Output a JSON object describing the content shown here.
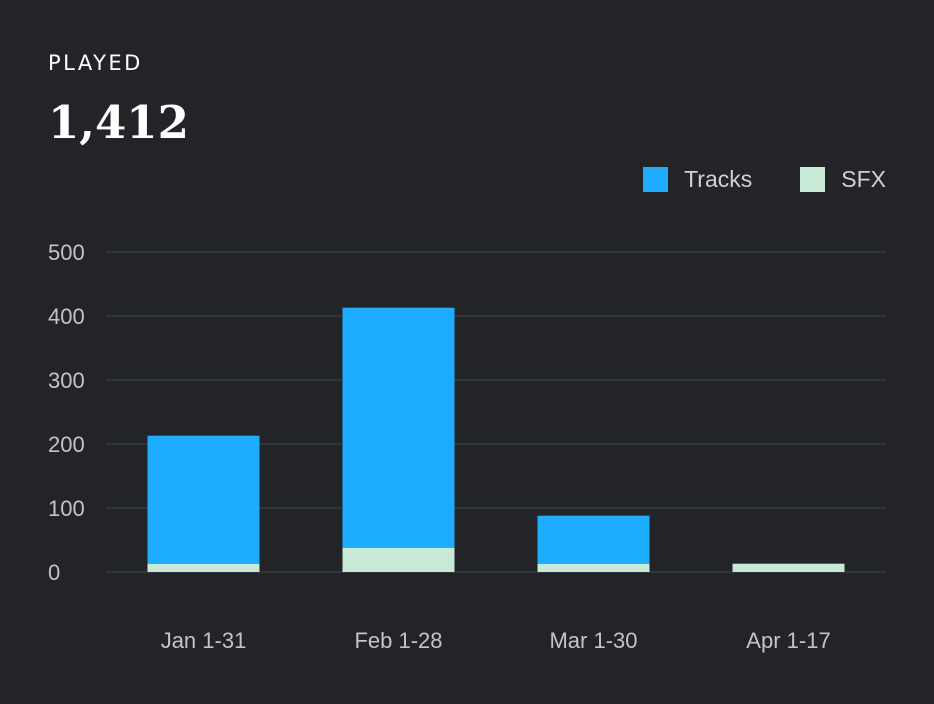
{
  "card": {
    "label": "PLAYED",
    "total": "1,412"
  },
  "colors": {
    "background": "#222428",
    "tracks": "#1eacff",
    "sfx": "#c7e9d5",
    "grid": "#383b40"
  },
  "chart_data": {
    "type": "bar",
    "stacked": true,
    "categories": [
      "Jan 1-31",
      "Feb 1-28",
      "Mar 1-30",
      "Apr 1-17"
    ],
    "series": [
      {
        "name": "SFX",
        "values": [
          13,
          38,
          13,
          13
        ],
        "color": "#c7e9d5"
      },
      {
        "name": "Tracks",
        "values": [
          200,
          375,
          75,
          0
        ],
        "color": "#1eacff"
      }
    ],
    "yticks": [
      0,
      100,
      200,
      300,
      400,
      500
    ],
    "ylim": [
      0,
      500
    ],
    "grid": true,
    "legend_position": "top-right"
  }
}
